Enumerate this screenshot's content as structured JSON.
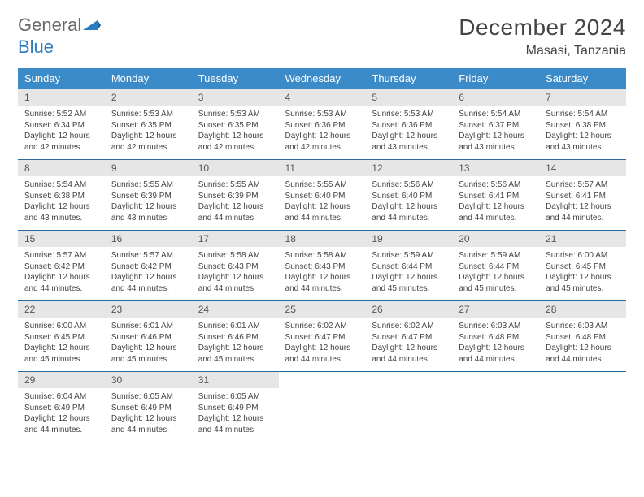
{
  "logo": {
    "text_left": "General",
    "text_right": "Blue"
  },
  "title": "December 2024",
  "location": "Masasi, Tanzania",
  "colors": {
    "header_bg": "#3b8bc9",
    "header_text": "#ffffff",
    "daynum_bg": "#e6e6e6",
    "border": "#2b6aa0",
    "logo_gray": "#6a6a6a",
    "logo_blue": "#2b7cc0",
    "body_text": "#444444"
  },
  "day_headers": [
    "Sunday",
    "Monday",
    "Tuesday",
    "Wednesday",
    "Thursday",
    "Friday",
    "Saturday"
  ],
  "weeks": [
    [
      {
        "n": "1",
        "sunrise": "5:52 AM",
        "sunset": "6:34 PM",
        "dh": "12",
        "dm": "42"
      },
      {
        "n": "2",
        "sunrise": "5:53 AM",
        "sunset": "6:35 PM",
        "dh": "12",
        "dm": "42"
      },
      {
        "n": "3",
        "sunrise": "5:53 AM",
        "sunset": "6:35 PM",
        "dh": "12",
        "dm": "42"
      },
      {
        "n": "4",
        "sunrise": "5:53 AM",
        "sunset": "6:36 PM",
        "dh": "12",
        "dm": "42"
      },
      {
        "n": "5",
        "sunrise": "5:53 AM",
        "sunset": "6:36 PM",
        "dh": "12",
        "dm": "43"
      },
      {
        "n": "6",
        "sunrise": "5:54 AM",
        "sunset": "6:37 PM",
        "dh": "12",
        "dm": "43"
      },
      {
        "n": "7",
        "sunrise": "5:54 AM",
        "sunset": "6:38 PM",
        "dh": "12",
        "dm": "43"
      }
    ],
    [
      {
        "n": "8",
        "sunrise": "5:54 AM",
        "sunset": "6:38 PM",
        "dh": "12",
        "dm": "43"
      },
      {
        "n": "9",
        "sunrise": "5:55 AM",
        "sunset": "6:39 PM",
        "dh": "12",
        "dm": "43"
      },
      {
        "n": "10",
        "sunrise": "5:55 AM",
        "sunset": "6:39 PM",
        "dh": "12",
        "dm": "44"
      },
      {
        "n": "11",
        "sunrise": "5:55 AM",
        "sunset": "6:40 PM",
        "dh": "12",
        "dm": "44"
      },
      {
        "n": "12",
        "sunrise": "5:56 AM",
        "sunset": "6:40 PM",
        "dh": "12",
        "dm": "44"
      },
      {
        "n": "13",
        "sunrise": "5:56 AM",
        "sunset": "6:41 PM",
        "dh": "12",
        "dm": "44"
      },
      {
        "n": "14",
        "sunrise": "5:57 AM",
        "sunset": "6:41 PM",
        "dh": "12",
        "dm": "44"
      }
    ],
    [
      {
        "n": "15",
        "sunrise": "5:57 AM",
        "sunset": "6:42 PM",
        "dh": "12",
        "dm": "44"
      },
      {
        "n": "16",
        "sunrise": "5:57 AM",
        "sunset": "6:42 PM",
        "dh": "12",
        "dm": "44"
      },
      {
        "n": "17",
        "sunrise": "5:58 AM",
        "sunset": "6:43 PM",
        "dh": "12",
        "dm": "44"
      },
      {
        "n": "18",
        "sunrise": "5:58 AM",
        "sunset": "6:43 PM",
        "dh": "12",
        "dm": "44"
      },
      {
        "n": "19",
        "sunrise": "5:59 AM",
        "sunset": "6:44 PM",
        "dh": "12",
        "dm": "45"
      },
      {
        "n": "20",
        "sunrise": "5:59 AM",
        "sunset": "6:44 PM",
        "dh": "12",
        "dm": "45"
      },
      {
        "n": "21",
        "sunrise": "6:00 AM",
        "sunset": "6:45 PM",
        "dh": "12",
        "dm": "45"
      }
    ],
    [
      {
        "n": "22",
        "sunrise": "6:00 AM",
        "sunset": "6:45 PM",
        "dh": "12",
        "dm": "45"
      },
      {
        "n": "23",
        "sunrise": "6:01 AM",
        "sunset": "6:46 PM",
        "dh": "12",
        "dm": "45"
      },
      {
        "n": "24",
        "sunrise": "6:01 AM",
        "sunset": "6:46 PM",
        "dh": "12",
        "dm": "45"
      },
      {
        "n": "25",
        "sunrise": "6:02 AM",
        "sunset": "6:47 PM",
        "dh": "12",
        "dm": "44"
      },
      {
        "n": "26",
        "sunrise": "6:02 AM",
        "sunset": "6:47 PM",
        "dh": "12",
        "dm": "44"
      },
      {
        "n": "27",
        "sunrise": "6:03 AM",
        "sunset": "6:48 PM",
        "dh": "12",
        "dm": "44"
      },
      {
        "n": "28",
        "sunrise": "6:03 AM",
        "sunset": "6:48 PM",
        "dh": "12",
        "dm": "44"
      }
    ],
    [
      {
        "n": "29",
        "sunrise": "6:04 AM",
        "sunset": "6:49 PM",
        "dh": "12",
        "dm": "44"
      },
      {
        "n": "30",
        "sunrise": "6:05 AM",
        "sunset": "6:49 PM",
        "dh": "12",
        "dm": "44"
      },
      {
        "n": "31",
        "sunrise": "6:05 AM",
        "sunset": "6:49 PM",
        "dh": "12",
        "dm": "44"
      },
      null,
      null,
      null,
      null
    ]
  ],
  "labels": {
    "sunrise": "Sunrise:",
    "sunset": "Sunset:",
    "daylight_prefix": "Daylight:",
    "hours_word": "hours",
    "and_word": "and",
    "minutes_word": "minutes."
  }
}
